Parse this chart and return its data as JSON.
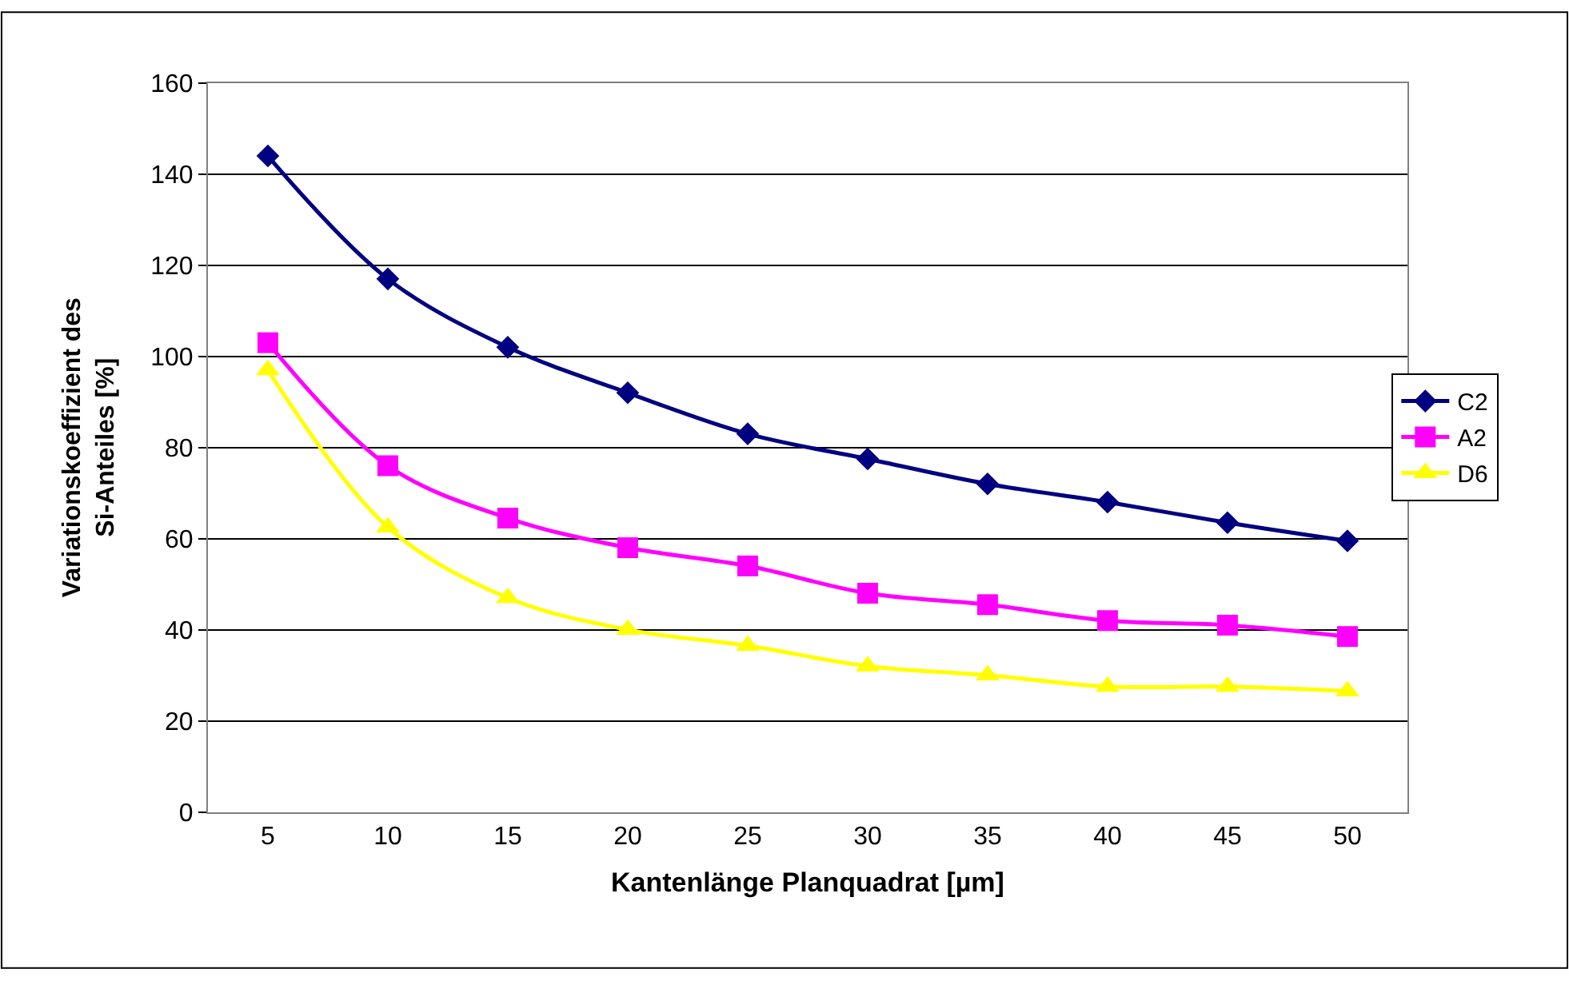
{
  "chart_data": {
    "type": "line",
    "xlabel": "Kantenlänge Planquadrat [µm]",
    "ylabel": "Variationskoeffizient des Si-Anteiles [%]",
    "categories": [
      "5",
      "10",
      "15",
      "20",
      "25",
      "30",
      "35",
      "40",
      "45",
      "50"
    ],
    "series": [
      {
        "name": "C2",
        "color": "#000080",
        "marker": "diamond",
        "values": [
          144,
          117,
          102,
          92,
          83,
          77.5,
          72,
          68,
          63.5,
          59.5
        ]
      },
      {
        "name": "A2",
        "color": "#ff00ff",
        "marker": "square",
        "values": [
          103,
          76,
          64.5,
          58,
          54,
          48,
          45.5,
          42,
          41,
          38.5
        ]
      },
      {
        "name": "D6",
        "color": "#ffff00",
        "marker": "triangle",
        "values": [
          97,
          62.5,
          47,
          40,
          36.5,
          32,
          30,
          27.5,
          27.5,
          26.5
        ]
      }
    ],
    "ylim": [
      0,
      160
    ],
    "yticks": [
      0,
      20,
      40,
      60,
      80,
      100,
      120,
      140,
      160
    ],
    "grid": "y",
    "legend": "right"
  }
}
